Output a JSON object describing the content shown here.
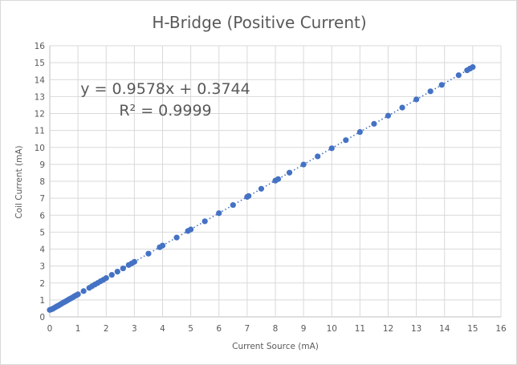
{
  "chart_data": {
    "type": "scatter",
    "title": "H-Bridge (Positive Current)",
    "xlabel": "Current Source (mA)",
    "ylabel": "Coil Current (mA)",
    "xlim": [
      0,
      16
    ],
    "ylim": [
      0,
      16
    ],
    "x_ticks": [
      "0",
      "1",
      "2",
      "3",
      "4",
      "5",
      "6",
      "7",
      "8",
      "9",
      "10",
      "11",
      "12",
      "13",
      "14",
      "15",
      "16"
    ],
    "y_ticks": [
      "0",
      "1",
      "2",
      "3",
      "4",
      "5",
      "6",
      "7",
      "8",
      "9",
      "10",
      "11",
      "12",
      "13",
      "14",
      "15",
      "16"
    ],
    "grid": true,
    "series": [
      {
        "color": "#4472c4",
        "x": [
          0,
          0.05,
          0.1,
          0.15,
          0.2,
          0.25,
          0.3,
          0.35,
          0.4,
          0.45,
          0.5,
          0.55,
          0.6,
          0.65,
          0.7,
          0.75,
          0.8,
          0.85,
          0.9,
          0.95,
          1.0,
          1.2,
          1.4,
          1.5,
          1.6,
          1.7,
          1.8,
          1.9,
          2.0,
          2.2,
          2.4,
          2.6,
          2.8,
          2.9,
          3.0,
          3.5,
          3.9,
          4.0,
          4.5,
          4.9,
          5.0,
          5.5,
          6.0,
          6.5,
          7.0,
          7.05,
          7.5,
          8.0,
          8.1,
          8.5,
          9.0,
          9.5,
          10.0,
          10.5,
          11.0,
          11.5,
          12.0,
          12.5,
          13.0,
          13.5,
          13.9,
          14.5,
          14.8,
          14.9,
          15.0
        ],
        "y": [
          0.41,
          0.44,
          0.47,
          0.52,
          0.57,
          0.62,
          0.66,
          0.71,
          0.76,
          0.81,
          0.86,
          0.9,
          0.95,
          1.0,
          1.05,
          1.09,
          1.14,
          1.19,
          1.24,
          1.28,
          1.33,
          1.52,
          1.71,
          1.81,
          1.91,
          2.0,
          2.1,
          2.19,
          2.29,
          2.48,
          2.67,
          2.86,
          3.06,
          3.15,
          3.25,
          3.73,
          4.11,
          4.21,
          4.68,
          5.07,
          5.16,
          5.64,
          6.12,
          6.6,
          7.08,
          7.13,
          7.56,
          8.04,
          8.13,
          8.51,
          8.99,
          9.47,
          9.95,
          10.43,
          10.91,
          11.39,
          11.87,
          12.35,
          12.83,
          13.31,
          13.69,
          14.26,
          14.55,
          14.65,
          14.74
        ]
      }
    ],
    "trendline": {
      "type": "linear",
      "slope": 0.9578,
      "intercept": 0.3744,
      "equation": "y = 0.9578x + 0.3744",
      "r_squared": "R² = 0.9999",
      "style": "dotted"
    }
  }
}
